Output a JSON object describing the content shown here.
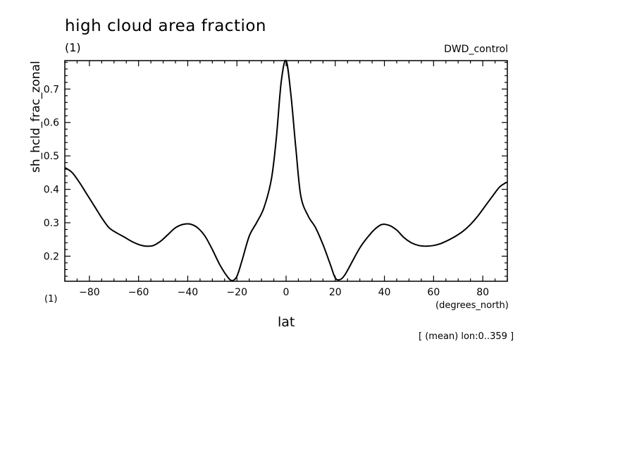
{
  "chart_data": {
    "type": "line",
    "title": "high cloud area fraction",
    "units": "(1)",
    "run_name": "DWD_control",
    "ylabel": "sh_hcld_frac_zonal",
    "y_unit": "(1)",
    "xlabel": "lat",
    "x_unit": "(degrees_north)",
    "note": "[ (mean) lon:0..359 ]",
    "xlim": [
      -90,
      90
    ],
    "ylim": [
      0.125,
      0.785
    ],
    "x_ticks": [
      -80,
      -60,
      -40,
      -20,
      0,
      20,
      40,
      60,
      80
    ],
    "x_tick_labels": [
      "−80",
      "−60",
      "−40",
      "−20",
      "0",
      "20",
      "40",
      "60",
      "80"
    ],
    "y_ticks": [
      0.2,
      0.3,
      0.4,
      0.5,
      0.6,
      0.7
    ],
    "y_tick_labels": [
      "0.2",
      "0.3",
      "0.4",
      "0.5",
      "0.6",
      "0.7"
    ],
    "grid": false,
    "line_color": "#000000",
    "series": [
      {
        "x": [
          -90,
          -87,
          -84,
          -81,
          -78,
          -75,
          -72,
          -69,
          -66,
          -63,
          -60,
          -57,
          -54,
          -51,
          -48,
          -45,
          -42,
          -39,
          -36,
          -33,
          -30,
          -27,
          -24,
          -22,
          -20,
          -18,
          -15,
          -12,
          -9,
          -6,
          -4,
          -2,
          0,
          2,
          4,
          6,
          9,
          12,
          15,
          18,
          20,
          22,
          24,
          27,
          30,
          33,
          36,
          39,
          42,
          45,
          48,
          51,
          54,
          57,
          60,
          63,
          66,
          69,
          72,
          75,
          78,
          81,
          84,
          87,
          90
        ],
        "y": [
          0.465,
          0.45,
          0.42,
          0.385,
          0.35,
          0.315,
          0.285,
          0.27,
          0.258,
          0.245,
          0.235,
          0.23,
          0.232,
          0.245,
          0.265,
          0.285,
          0.295,
          0.296,
          0.285,
          0.26,
          0.22,
          0.175,
          0.14,
          0.127,
          0.14,
          0.185,
          0.26,
          0.3,
          0.345,
          0.43,
          0.55,
          0.72,
          0.785,
          0.68,
          0.52,
          0.38,
          0.32,
          0.285,
          0.235,
          0.175,
          0.135,
          0.13,
          0.145,
          0.185,
          0.225,
          0.255,
          0.28,
          0.295,
          0.292,
          0.278,
          0.255,
          0.24,
          0.232,
          0.23,
          0.232,
          0.238,
          0.248,
          0.26,
          0.275,
          0.295,
          0.32,
          0.35,
          0.38,
          0.408,
          0.422
        ]
      }
    ]
  }
}
